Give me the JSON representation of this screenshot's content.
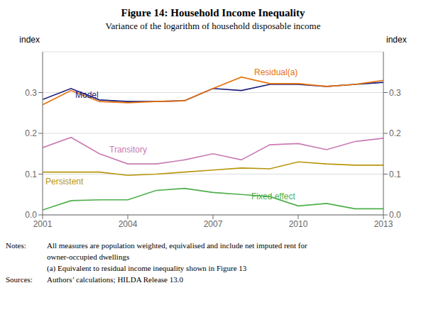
{
  "chart_data": {
    "type": "line",
    "title": "Figure 14: Household Income Inequality",
    "subtitle": "Variance of the logarithm of household disposable income",
    "y_label": "index",
    "y2_label": "index",
    "x": [
      2001,
      2002,
      2003,
      2004,
      2005,
      2006,
      2007,
      2008,
      2009,
      2010,
      2011,
      2012,
      2013
    ],
    "series": [
      {
        "name": "Model",
        "color": "#1a1a7a",
        "values": [
          0.283,
          0.31,
          0.282,
          0.278,
          0.278,
          0.28,
          0.31,
          0.305,
          0.32,
          0.32,
          0.315,
          0.32,
          0.325
        ]
      },
      {
        "name": "Residual(a)",
        "color": "#e8720c",
        "values": [
          0.27,
          0.305,
          0.278,
          0.275,
          0.278,
          0.28,
          0.31,
          0.338,
          0.322,
          0.322,
          0.315,
          0.32,
          0.33
        ]
      },
      {
        "name": "Transitory",
        "color": "#c97bb2",
        "values": [
          0.165,
          0.19,
          0.15,
          0.125,
          0.125,
          0.135,
          0.15,
          0.135,
          0.172,
          0.175,
          0.16,
          0.18,
          0.188
        ]
      },
      {
        "name": "Persistent",
        "color": "#b8960c",
        "values": [
          0.105,
          0.105,
          0.105,
          0.097,
          0.1,
          0.105,
          0.11,
          0.115,
          0.113,
          0.13,
          0.125,
          0.122,
          0.122
        ]
      },
      {
        "name": "Fixed effect",
        "color": "#4daf4a",
        "values": [
          0.012,
          0.035,
          0.037,
          0.037,
          0.06,
          0.065,
          0.055,
          0.05,
          0.045,
          0.022,
          0.028,
          0.015,
          0.015
        ]
      }
    ],
    "xlim": [
      2001,
      2013
    ],
    "xticks": [
      2001,
      2004,
      2007,
      2010,
      2013
    ],
    "ylim": [
      0.0,
      0.4
    ],
    "yticks": [
      {
        "value": 0.0,
        "label": "0.0"
      },
      0.1,
      0.2,
      0.3
    ],
    "y2lim": [
      0.0,
      0.4
    ],
    "y2ticks": [
      {
        "value": 0.0,
        "label": "0.0"
      },
      0.1,
      0.2,
      0.3
    ],
    "grid": true,
    "annotations": [
      "Notes:",
      "All measures are population weighted, equivalised and include net imputed rent for",
      "owner-occupied dwellings",
      "(a) Equivalent to residual income inequality shown in Figure 13",
      "Sources:",
      "Authors’ calculations; HILDA Release 13.0"
    ]
  }
}
